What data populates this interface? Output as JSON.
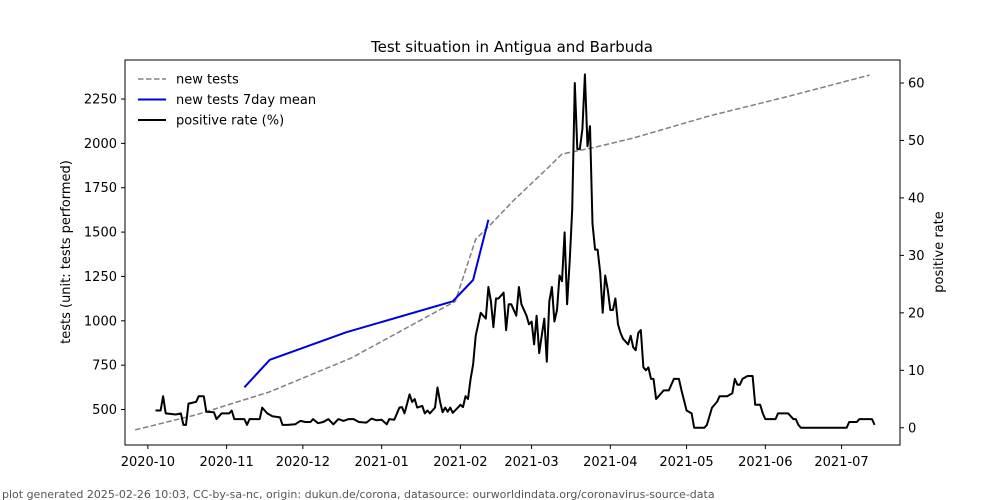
{
  "chart_data": {
    "type": "line",
    "title": "Test situation in Antigua and Barbuda",
    "ylabel_left": "tests (unit: tests performed)",
    "ylabel_right": "positive rate",
    "xlim": [
      "2020-09-22",
      "2021-07-24"
    ],
    "ylim_left": [
      300,
      2470
    ],
    "ylim_right": [
      -3,
      64
    ],
    "x_ticks": [
      "2020-10",
      "2020-11",
      "2020-12",
      "2021-01",
      "2021-02",
      "2021-03",
      "2021-04",
      "2021-05",
      "2021-06",
      "2021-07"
    ],
    "y_ticks_left": [
      500,
      750,
      1000,
      1250,
      1500,
      1750,
      2000,
      2250
    ],
    "y_ticks_right": [
      0,
      10,
      20,
      30,
      40,
      50,
      60
    ],
    "legend_position": "upper-left",
    "series": [
      {
        "name": "new tests",
        "axis": "left",
        "style": "dashed",
        "color": "#808080",
        "points": [
          [
            "2020-09-26",
            385
          ],
          [
            "2020-10-20",
            470
          ],
          [
            "2020-11-18",
            600
          ],
          [
            "2020-12-20",
            790
          ],
          [
            "2021-01-30",
            1110
          ],
          [
            "2021-02-07",
            1460
          ],
          [
            "2021-02-12",
            1530
          ],
          [
            "2021-02-22",
            1680
          ],
          [
            "2021-03-08",
            1870
          ],
          [
            "2021-03-13",
            1940
          ],
          [
            "2021-03-25",
            1975
          ],
          [
            "2021-04-10",
            2030
          ],
          [
            "2021-05-10",
            2155
          ],
          [
            "2021-06-10",
            2265
          ],
          [
            "2021-07-12",
            2385
          ]
        ]
      },
      {
        "name": "new tests 7day mean",
        "axis": "left",
        "style": "solid",
        "color": "#0000dd",
        "points": [
          [
            "2020-11-08",
            625
          ],
          [
            "2020-11-18",
            780
          ],
          [
            "2020-12-18",
            935
          ],
          [
            "2021-01-29",
            1110
          ],
          [
            "2021-02-06",
            1230
          ],
          [
            "2021-02-12",
            1570
          ]
        ]
      },
      {
        "name": "positive rate (%)",
        "axis": "right",
        "style": "solid",
        "color": "#000000",
        "points": [
          [
            "2020-10-04",
            3
          ],
          [
            "2020-10-06",
            3
          ],
          [
            "2020-10-07",
            5.5
          ],
          [
            "2020-10-08",
            2.5
          ],
          [
            "2020-10-12",
            2.3
          ],
          [
            "2020-10-14",
            2.5
          ],
          [
            "2020-10-15",
            0.5
          ],
          [
            "2020-10-16",
            0.5
          ],
          [
            "2020-10-17",
            4.2
          ],
          [
            "2020-10-20",
            4.5
          ],
          [
            "2020-10-21",
            5.5
          ],
          [
            "2020-10-23",
            5.5
          ],
          [
            "2020-10-24",
            2.8
          ],
          [
            "2020-10-27",
            2.7
          ],
          [
            "2020-10-28",
            1.5
          ],
          [
            "2020-10-30",
            2.5
          ],
          [
            "2020-11-02",
            2.5
          ],
          [
            "2020-11-03",
            3
          ],
          [
            "2020-11-04",
            1.5
          ],
          [
            "2020-11-08",
            1.5
          ],
          [
            "2020-11-09",
            0.5
          ],
          [
            "2020-11-10",
            1.5
          ],
          [
            "2020-11-14",
            1.5
          ],
          [
            "2020-11-15",
            3.5
          ],
          [
            "2020-11-17",
            2.5
          ],
          [
            "2020-11-19",
            2
          ],
          [
            "2020-11-22",
            1.8
          ],
          [
            "2020-11-23",
            0.5
          ],
          [
            "2020-11-25",
            0.5
          ],
          [
            "2020-11-28",
            0.6
          ],
          [
            "2020-11-30",
            1.2
          ],
          [
            "2020-12-02",
            1
          ],
          [
            "2020-12-04",
            1
          ],
          [
            "2020-12-05",
            1.5
          ],
          [
            "2020-12-07",
            0.8
          ],
          [
            "2020-12-09",
            1
          ],
          [
            "2020-12-11",
            1.5
          ],
          [
            "2020-12-13",
            0.6
          ],
          [
            "2020-12-15",
            1.5
          ],
          [
            "2020-12-17",
            1.2
          ],
          [
            "2020-12-19",
            1.5
          ],
          [
            "2020-12-21",
            1.5
          ],
          [
            "2020-12-23",
            1
          ],
          [
            "2020-12-26",
            0.9
          ],
          [
            "2020-12-28",
            1.6
          ],
          [
            "2020-12-30",
            1.3
          ],
          [
            "2021-01-01",
            1.4
          ],
          [
            "2021-01-03",
            0.6
          ],
          [
            "2021-01-04",
            1.5
          ],
          [
            "2021-01-06",
            1.4
          ],
          [
            "2021-01-08",
            3.5
          ],
          [
            "2021-01-09",
            3.6
          ],
          [
            "2021-01-10",
            2.5
          ],
          [
            "2021-01-12",
            5.8
          ],
          [
            "2021-01-13",
            4.5
          ],
          [
            "2021-01-14",
            5
          ],
          [
            "2021-01-15",
            3.5
          ],
          [
            "2021-01-17",
            3.8
          ],
          [
            "2021-01-18",
            2.5
          ],
          [
            "2021-01-19",
            3
          ],
          [
            "2021-01-20",
            2.5
          ],
          [
            "2021-01-22",
            3.5
          ],
          [
            "2021-01-23",
            7
          ],
          [
            "2021-01-24",
            4.5
          ],
          [
            "2021-01-25",
            2.7
          ],
          [
            "2021-01-26",
            3.5
          ],
          [
            "2021-01-27",
            2.8
          ],
          [
            "2021-01-28",
            3.5
          ],
          [
            "2021-01-29",
            2.6
          ],
          [
            "2021-01-31",
            3.5
          ],
          [
            "2021-02-01",
            4
          ],
          [
            "2021-02-02",
            3.6
          ],
          [
            "2021-02-03",
            5.5
          ],
          [
            "2021-02-04",
            5
          ],
          [
            "2021-02-05",
            8.5
          ],
          [
            "2021-02-06",
            11
          ],
          [
            "2021-02-07",
            16
          ],
          [
            "2021-02-08",
            18
          ],
          [
            "2021-02-09",
            20
          ],
          [
            "2021-02-11",
            19
          ],
          [
            "2021-02-12",
            24.5
          ],
          [
            "2021-02-13",
            22
          ],
          [
            "2021-02-14",
            17.5
          ],
          [
            "2021-02-15",
            22.5
          ],
          [
            "2021-02-16",
            22.5
          ],
          [
            "2021-02-18",
            23.5
          ],
          [
            "2021-02-19",
            17
          ],
          [
            "2021-02-20",
            21.5
          ],
          [
            "2021-02-21",
            21.5
          ],
          [
            "2021-02-23",
            19.5
          ],
          [
            "2021-02-24",
            24.5
          ],
          [
            "2021-02-25",
            21.5
          ],
          [
            "2021-02-27",
            19.5
          ],
          [
            "2021-02-28",
            18
          ],
          [
            "2021-03-01",
            18.5
          ],
          [
            "2021-03-02",
            14.5
          ],
          [
            "2021-03-03",
            19.5
          ],
          [
            "2021-03-04",
            13
          ],
          [
            "2021-03-05",
            16
          ],
          [
            "2021-03-06",
            19
          ],
          [
            "2021-03-07",
            11.5
          ],
          [
            "2021-03-08",
            22
          ],
          [
            "2021-03-09",
            24.5
          ],
          [
            "2021-03-10",
            18.5
          ],
          [
            "2021-03-11",
            20.5
          ],
          [
            "2021-03-12",
            26.5
          ],
          [
            "2021-03-13",
            25.5
          ],
          [
            "2021-03-14",
            34
          ],
          [
            "2021-03-15",
            21.5
          ],
          [
            "2021-03-16",
            29
          ],
          [
            "2021-03-17",
            38
          ],
          [
            "2021-03-18",
            60
          ],
          [
            "2021-03-19",
            48.5
          ],
          [
            "2021-03-20",
            48.5
          ],
          [
            "2021-03-21",
            52
          ],
          [
            "2021-03-22",
            61.5
          ],
          [
            "2021-03-23",
            49
          ],
          [
            "2021-03-24",
            52.5
          ],
          [
            "2021-03-25",
            35.5
          ],
          [
            "2021-03-26",
            31
          ],
          [
            "2021-03-27",
            31
          ],
          [
            "2021-03-28",
            27
          ],
          [
            "2021-03-29",
            20
          ],
          [
            "2021-03-30",
            26.5
          ],
          [
            "2021-03-31",
            24
          ],
          [
            "2021-04-01",
            20.5
          ],
          [
            "2021-04-02",
            20.5
          ],
          [
            "2021-04-03",
            22.5
          ],
          [
            "2021-04-04",
            18
          ],
          [
            "2021-04-05",
            16.5
          ],
          [
            "2021-04-06",
            15.5
          ],
          [
            "2021-04-07",
            15
          ],
          [
            "2021-04-08",
            14.5
          ],
          [
            "2021-04-09",
            16
          ],
          [
            "2021-04-10",
            14
          ],
          [
            "2021-04-11",
            13.5
          ],
          [
            "2021-04-12",
            16.5
          ],
          [
            "2021-04-13",
            17
          ],
          [
            "2021-04-14",
            10.5
          ],
          [
            "2021-04-15",
            10
          ],
          [
            "2021-04-16",
            10.5
          ],
          [
            "2021-04-17",
            8.5
          ],
          [
            "2021-04-18",
            8.5
          ],
          [
            "2021-04-19",
            5
          ],
          [
            "2021-04-20",
            5.5
          ],
          [
            "2021-04-22",
            6.5
          ],
          [
            "2021-04-24",
            6.5
          ],
          [
            "2021-04-26",
            8.5
          ],
          [
            "2021-04-28",
            8.5
          ],
          [
            "2021-04-29",
            6.5
          ],
          [
            "2021-05-01",
            3
          ],
          [
            "2021-05-03",
            2.5
          ],
          [
            "2021-05-04",
            0
          ],
          [
            "2021-05-08",
            0
          ],
          [
            "2021-05-09",
            0.5
          ],
          [
            "2021-05-11",
            3.5
          ],
          [
            "2021-05-13",
            4.5
          ],
          [
            "2021-05-14",
            5.5
          ],
          [
            "2021-05-17",
            5.5
          ],
          [
            "2021-05-19",
            6
          ],
          [
            "2021-05-20",
            8.5
          ],
          [
            "2021-05-21",
            7.5
          ],
          [
            "2021-05-22",
            7.5
          ],
          [
            "2021-05-23",
            8.5
          ],
          [
            "2021-05-25",
            9
          ],
          [
            "2021-05-27",
            9
          ],
          [
            "2021-05-28",
            4
          ],
          [
            "2021-05-30",
            4
          ],
          [
            "2021-05-31",
            2.5
          ],
          [
            "2021-06-01",
            1.5
          ],
          [
            "2021-06-02",
            1.5
          ],
          [
            "2021-06-05",
            1.5
          ],
          [
            "2021-06-06",
            2.5
          ],
          [
            "2021-06-08",
            2.5
          ],
          [
            "2021-06-10",
            2.5
          ],
          [
            "2021-06-12",
            1.5
          ],
          [
            "2021-06-13",
            1.5
          ],
          [
            "2021-06-14",
            0.5
          ],
          [
            "2021-06-15",
            0
          ],
          [
            "2021-06-20",
            0
          ],
          [
            "2021-06-25",
            0
          ],
          [
            "2021-06-30",
            0
          ],
          [
            "2021-07-03",
            0
          ],
          [
            "2021-07-04",
            1
          ],
          [
            "2021-07-07",
            1
          ],
          [
            "2021-07-08",
            1.5
          ],
          [
            "2021-07-12",
            1.5
          ],
          [
            "2021-07-13",
            1.5
          ],
          [
            "2021-07-14",
            0.5
          ]
        ]
      }
    ]
  },
  "footer": "plot generated 2025-02-26 10:03, CC-by-sa-nc, origin: dukun.de/corona, datasource: ourworldindata.org/coronavirus-source-data"
}
